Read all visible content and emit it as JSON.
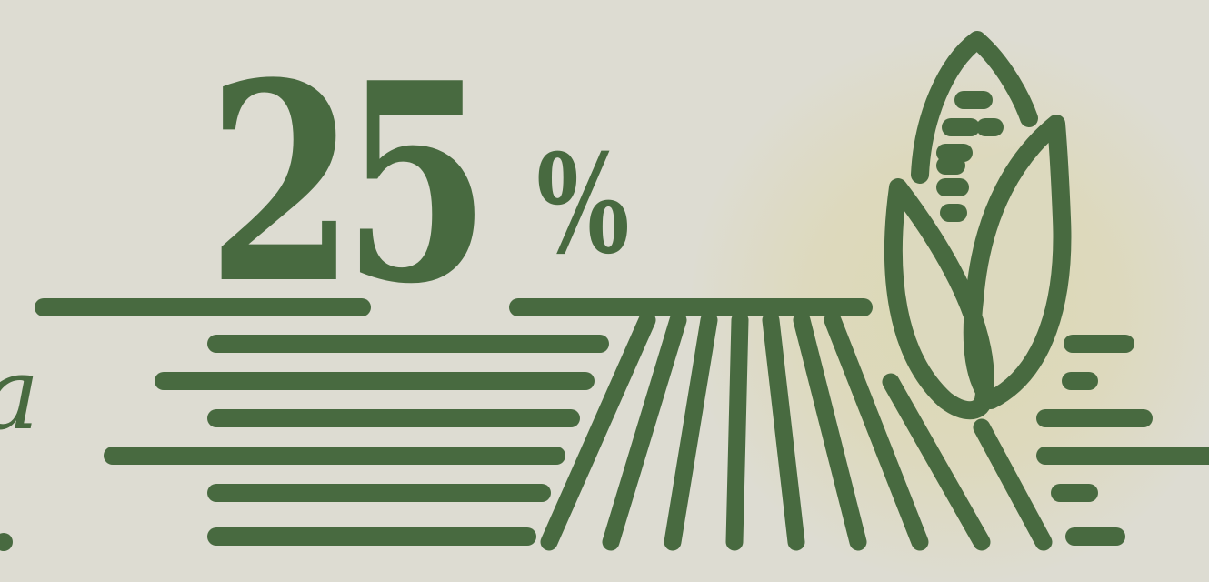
{
  "infographic": {
    "value": "25",
    "unit": "%",
    "side_text_fragment": "a",
    "icon": "corn-field-icon",
    "colors": {
      "primary": "#486a40",
      "background": "#dddcd2",
      "glow": "#dcd9b4"
    }
  }
}
